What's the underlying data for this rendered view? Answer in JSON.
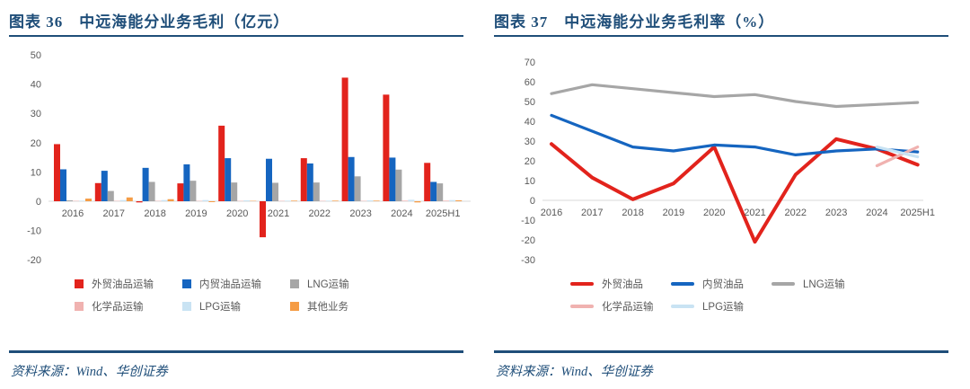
{
  "colors": {
    "accent_navy": "#1F4E79",
    "red": "#E2231C",
    "blue": "#1565C0",
    "gray": "#A6A6A6",
    "pink": "#F0B2B0",
    "light_blue": "#C9E3F3",
    "orange": "#F59C45",
    "tick_text": "#595959",
    "axis_line": "#D9D9D9"
  },
  "figures": [
    {
      "label": "图表 36",
      "title": "中远海能分业务毛利（亿元）",
      "source": "资料来源：Wind、华创证券"
    },
    {
      "label": "图表 37",
      "title": "中远海能分业务毛利率（%）",
      "source": "资料来源：Wind、华创证券"
    }
  ],
  "chart_data": [
    {
      "type": "bar",
      "title": "中远海能分业务毛利（亿元）",
      "categories": [
        "2016",
        "2017",
        "2018",
        "2019",
        "2020",
        "2021",
        "2022",
        "2023",
        "2024",
        "2025H1"
      ],
      "series": [
        {
          "name": "外贸油品运输",
          "color": "#E2231C",
          "values": [
            19.5,
            6.2,
            -0.4,
            6.1,
            25.8,
            -12.3,
            14.7,
            42.2,
            36.4,
            13.1
          ]
        },
        {
          "name": "内贸油品运输",
          "color": "#1565C0",
          "values": [
            10.9,
            10.4,
            11.4,
            12.6,
            14.7,
            14.5,
            12.9,
            15.1,
            14.9,
            6.6
          ]
        },
        {
          "name": "LNG运输",
          "color": "#A6A6A6",
          "values": [
            0.3,
            3.5,
            6.6,
            7.0,
            6.4,
            6.3,
            6.4,
            8.5,
            10.8,
            6.1
          ]
        },
        {
          "name": "化学品运输",
          "color": "#F0B2B0",
          "values": [
            0.1,
            0.1,
            0.1,
            0.1,
            0.1,
            0.1,
            0.1,
            0.1,
            0.2,
            0.2
          ]
        },
        {
          "name": "LPG运输",
          "color": "#C9E3F3",
          "values": [
            0.2,
            0.4,
            0.4,
            0.4,
            0.3,
            0.2,
            0.2,
            0.3,
            0.5,
            0.4
          ]
        },
        {
          "name": "其他业务",
          "color": "#F59C45",
          "values": [
            0.9,
            1.3,
            0.7,
            -0.3,
            0.1,
            0.2,
            0.2,
            0.2,
            -0.4,
            0.3
          ]
        }
      ],
      "ylim": [
        -20,
        50
      ],
      "yticks": [
        50,
        40,
        30,
        20,
        10,
        0,
        -10,
        -20
      ],
      "grid": false,
      "legend_position": "bottom"
    },
    {
      "type": "line",
      "title": "中远海能分业务毛利率（%）",
      "categories": [
        "2016",
        "2017",
        "2018",
        "2019",
        "2020",
        "2021",
        "2022",
        "2023",
        "2024",
        "2025H1"
      ],
      "series": [
        {
          "name": "外贸油品",
          "color": "#E2231C",
          "values": [
            28.5,
            11.5,
            0.5,
            8.5,
            27,
            -21,
            13,
            31,
            26,
            18
          ]
        },
        {
          "name": "内贸油品",
          "color": "#1565C0",
          "values": [
            43,
            35,
            27,
            25,
            28,
            27,
            23,
            25,
            26,
            24.5
          ]
        },
        {
          "name": "LNG运输",
          "color": "#A6A6A6",
          "values": [
            54,
            58.5,
            56.5,
            54.5,
            52.5,
            53.5,
            50,
            47.5,
            48.5,
            49.5
          ]
        },
        {
          "name": "化学品运输",
          "color": "#F0B2B0",
          "values": [
            null,
            null,
            null,
            null,
            null,
            null,
            null,
            null,
            17.5,
            27
          ]
        },
        {
          "name": "LPG运输",
          "color": "#C9E3F3",
          "values": [
            null,
            null,
            null,
            null,
            null,
            null,
            null,
            null,
            27,
            22
          ]
        }
      ],
      "ylim": [
        -30,
        70
      ],
      "yticks": [
        70,
        60,
        50,
        40,
        30,
        20,
        10,
        0,
        -10,
        -20,
        -30
      ],
      "grid": false,
      "legend_position": "bottom"
    }
  ]
}
